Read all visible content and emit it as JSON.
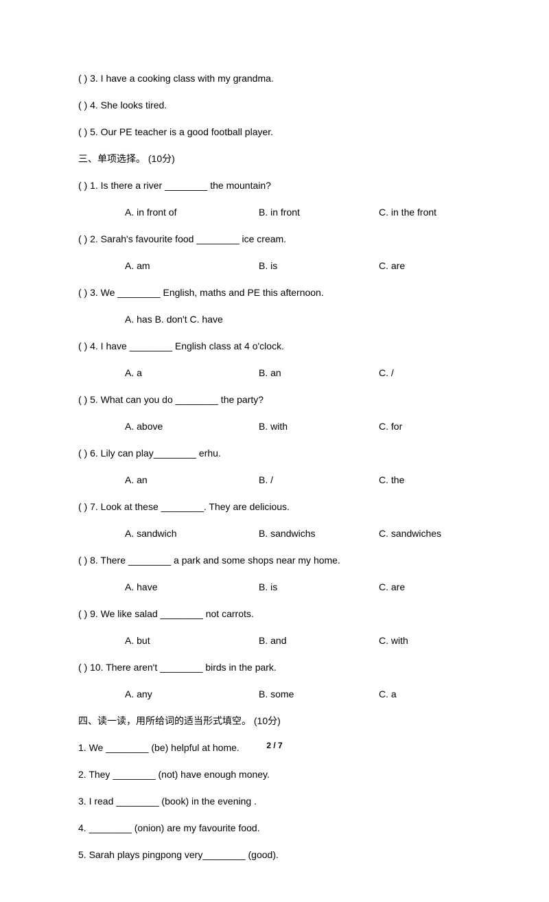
{
  "section2": {
    "q3": "(       ) 3. I have a cooking class with my grandma.",
    "q4": "(       ) 4. She looks tired.",
    "q5": "(       ) 5. Our PE teacher is a good football player."
  },
  "section3": {
    "header": "三、单项选择。  (10分)",
    "items": [
      {
        "stem": "(       ) 1. Is there a river ________ the mountain?",
        "a": "A. in front of",
        "b": "B. in front",
        "c": "C. in the front",
        "inline": false
      },
      {
        "stem": "(       ) 2. Sarah's favourite food ________ ice cream.",
        "a": "A. am",
        "b": "B. is",
        "c": "C. are",
        "inline": false
      },
      {
        "stem": "(       ) 3. We ________ English, maths and PE this afternoon.",
        "a": "A. has   B. don't   C. have",
        "b": "",
        "c": "",
        "inline": true
      },
      {
        "stem": "(       ) 4. I have ________ English class at 4 o'clock.",
        "a": "A. a",
        "b": "B. an",
        "c": "C. /",
        "inline": false
      },
      {
        "stem": "(       ) 5. What can you do ________ the party?",
        "a": "A. above",
        "b": "B. with",
        "c": "C. for",
        "inline": false
      },
      {
        "stem": "(       ) 6. Lily can play________ erhu.",
        "a": "A. an",
        "b": "B. /",
        "c": "C. the",
        "inline": false
      },
      {
        "stem": "(       ) 7. Look at these ________. They are delicious.",
        "a": "A. sandwich",
        "b": "B. sandwichs",
        "c": "C. sandwiches",
        "inline": false
      },
      {
        "stem": "(       ) 8. There ________ a park and some shops near my home.",
        "a": "A. have",
        "b": "B. is",
        "c": "C. are",
        "inline": false
      },
      {
        "stem": "(       ) 9. We like salad ________ not carrots.",
        "a": "A. but",
        "b": "B. and",
        "c": "C. with",
        "inline": false
      },
      {
        "stem": "(       ) 10. There aren't ________ birds in the park.",
        "a": "A. any",
        "b": "B. some",
        "c": "C. a",
        "inline": false
      }
    ]
  },
  "section4": {
    "header": "四、读一读，用所给词的适当形式填空。   (10分)",
    "items": [
      "1. We ________ (be) helpful at home.",
      "2. They ________ (not) have enough money.",
      "3. I read ________ (book) in the evening .",
      "4. ________ (onion) are my favourite food.",
      "5. Sarah plays pingpong very________ (good)."
    ]
  },
  "footer": "2 / 7",
  "colors": {
    "text": "#000000",
    "bg": "#ffffff"
  },
  "typography": {
    "body_fontsize": 14,
    "footer_fontsize": 12
  }
}
